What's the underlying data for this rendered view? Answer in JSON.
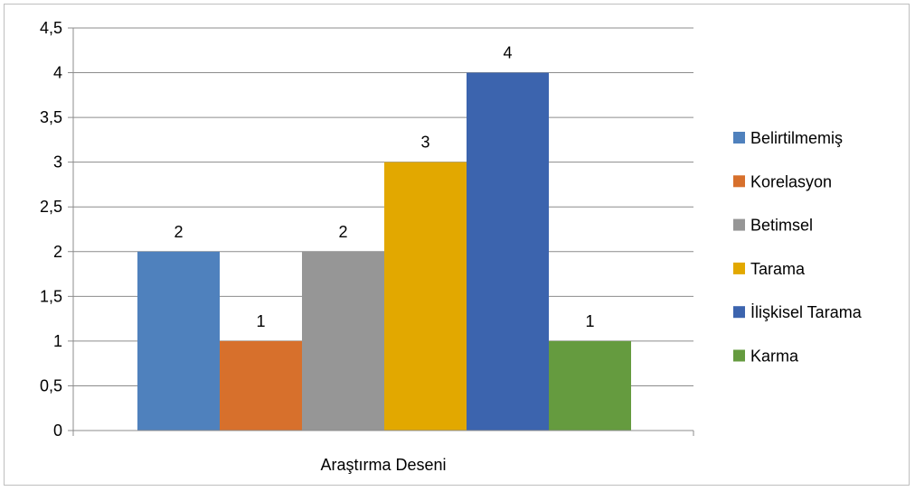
{
  "chart_data": {
    "type": "bar",
    "title": "",
    "xlabel": "",
    "ylabel": "",
    "categories": [
      "Araştırma Deseni"
    ],
    "series": [
      {
        "name": "Belirtilmemiş",
        "values": [
          2
        ],
        "color": "#4f81bd"
      },
      {
        "name": "Korelasyon",
        "values": [
          1
        ],
        "color": "#d7702c"
      },
      {
        "name": "Betimsel",
        "values": [
          2
        ],
        "color": "#969696"
      },
      {
        "name": "Tarama",
        "values": [
          3
        ],
        "color": "#e2a800"
      },
      {
        "name": "İlişkisel Tarama",
        "values": [
          4
        ],
        "color": "#3c64ae"
      },
      {
        "name": "Karma",
        "values": [
          1
        ],
        "color": "#659b3f"
      }
    ],
    "ylim": [
      0,
      4.5
    ],
    "yticks": [
      "0",
      "0,5",
      "1",
      "1,5",
      "2",
      "2,5",
      "3",
      "3,5",
      "4",
      "4,5"
    ],
    "grid": true,
    "legend": "right",
    "data_labels": true
  }
}
